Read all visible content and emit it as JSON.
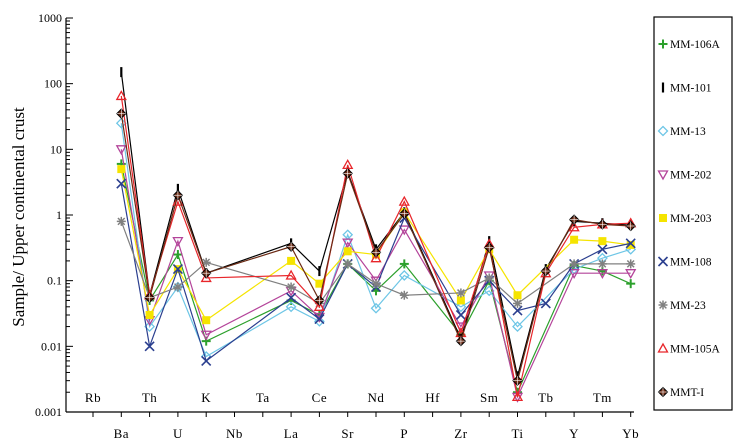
{
  "chart_data": {
    "type": "line",
    "title": "",
    "xlabel": "",
    "ylabel": "Sample/ Upper continental crust",
    "yscale": "log",
    "ylim": [
      0.001,
      1000
    ],
    "ytick_labels": [
      "0.001",
      "0.01",
      "0.1",
      "1",
      "10",
      "100",
      "1000"
    ],
    "ytick_values": [
      0.001,
      0.01,
      0.1,
      1,
      10,
      100,
      1000
    ],
    "categories": [
      "Rb",
      "Ba",
      "Th",
      "U",
      "K",
      "Nb",
      "Ta",
      "La",
      "Ce",
      "Sr",
      "Nd",
      "P",
      "Hf",
      "Zr",
      "Sm",
      "Ti",
      "Tb",
      "Y",
      "Tm",
      "Yb"
    ],
    "category_labels": [
      "Rb",
      "Ba",
      "Th",
      "U",
      "K",
      "Nb",
      "Ta",
      "La",
      "Ce",
      "Sr",
      "Nd",
      "P",
      "Hf",
      "Zr",
      "Sm",
      "Ti",
      "Tb",
      "Y",
      "Tm",
      "Yb"
    ],
    "category_rows": [
      "upper",
      "lower",
      "upper",
      "lower",
      "upper",
      "lower",
      "upper",
      "lower",
      "upper",
      "lower",
      "upper",
      "lower",
      "upper",
      "lower",
      "upper",
      "lower",
      "upper",
      "lower",
      "upper",
      "lower"
    ],
    "legend_position": "right",
    "series": [
      {
        "name": "MM-106A",
        "color": "#2ca02c",
        "marker": "plus",
        "x": [
          "Ba",
          "Th",
          "U",
          "K",
          "La",
          "Ce",
          "Sr",
          "Nd",
          "P",
          "Zr",
          "Sm",
          "Ti",
          "Y",
          "Tm",
          "Yb"
        ],
        "values": [
          6,
          0.05,
          0.25,
          0.012,
          0.05,
          0.03,
          0.18,
          0.07,
          0.18,
          0.015,
          0.1,
          0.002,
          0.17,
          0.14,
          0.09
        ]
      },
      {
        "name": "MM-101",
        "color": "#000000",
        "marker": "bar",
        "x": [
          "Ba",
          "Th",
          "U",
          "K",
          "La",
          "Ce",
          "Sr",
          "Nd",
          "P",
          "Zr",
          "Sm",
          "Ti",
          "Tb",
          "Y",
          "Tm",
          "Yb"
        ],
        "values": [
          150,
          0.06,
          2.5,
          0.13,
          0.37,
          0.14,
          4.5,
          0.3,
          1.1,
          0.013,
          0.4,
          0.0035,
          0.15,
          0.8,
          0.75,
          0.7
        ]
      },
      {
        "name": "MM-13",
        "color": "#6ec6e6",
        "marker": "diamond",
        "x": [
          "Ba",
          "Th",
          "U",
          "K",
          "La",
          "Ce",
          "Sr",
          "Nd",
          "P",
          "Zr",
          "Sm",
          "Ti",
          "Y",
          "Tm",
          "Yb"
        ],
        "values": [
          25,
          0.02,
          0.08,
          0.007,
          0.04,
          0.024,
          0.5,
          0.038,
          0.12,
          0.04,
          0.07,
          0.02,
          0.15,
          0.22,
          0.3
        ]
      },
      {
        "name": "MM-202",
        "color": "#b4449a",
        "marker": "triangle-down",
        "x": [
          "Ba",
          "Th",
          "U",
          "K",
          "La",
          "Ce",
          "Sr",
          "Nd",
          "P",
          "Zr",
          "Sm",
          "Ti",
          "Y",
          "Tm",
          "Yb"
        ],
        "values": [
          10,
          0.025,
          0.4,
          0.015,
          0.07,
          0.028,
          0.38,
          0.1,
          0.6,
          0.02,
          0.12,
          0.0017,
          0.13,
          0.13,
          0.13
        ]
      },
      {
        "name": "MM-203",
        "color": "#f5e400",
        "marker": "square",
        "x": [
          "Ba",
          "Th",
          "U",
          "K",
          "La",
          "Ce",
          "Sr",
          "Nd",
          "P",
          "Zr",
          "Sm",
          "Ti",
          "Y",
          "Tm",
          "Yb"
        ],
        "values": [
          5,
          0.03,
          0.15,
          0.025,
          0.2,
          0.09,
          0.28,
          0.25,
          1.1,
          0.05,
          0.3,
          0.06,
          0.42,
          0.4,
          0.35
        ]
      },
      {
        "name": "MM-108",
        "color": "#2b3f8f",
        "marker": "x",
        "x": [
          "Ba",
          "Th",
          "U",
          "K",
          "La",
          "Ce",
          "Sr",
          "Nd",
          "P",
          "Zr",
          "Sm",
          "Ti",
          "Tb",
          "Y",
          "Tm",
          "Yb"
        ],
        "values": [
          3,
          0.01,
          0.15,
          0.006,
          0.055,
          0.026,
          0.18,
          0.08,
          0.9,
          0.03,
          0.1,
          0.035,
          0.045,
          0.18,
          0.3,
          0.37
        ]
      },
      {
        "name": "MM-23",
        "color": "#808080",
        "marker": "asterisk",
        "x": [
          "Ba",
          "Th",
          "U",
          "K",
          "La",
          "Ce",
          "Sr",
          "Nd",
          "P",
          "Zr",
          "Sm",
          "Ti",
          "Y",
          "Tm",
          "Yb"
        ],
        "values": [
          0.8,
          0.055,
          0.08,
          0.19,
          0.08,
          0.045,
          0.18,
          0.09,
          0.06,
          0.065,
          0.11,
          0.045,
          0.18,
          0.18,
          0.18
        ]
      },
      {
        "name": "MM-105A",
        "color": "#e8262b",
        "marker": "triangle-up",
        "x": [
          "Ba",
          "Th",
          "U",
          "K",
          "La",
          "Ce",
          "Sr",
          "Nd",
          "P",
          "Zr",
          "Sm",
          "Ti",
          "Tb",
          "Y",
          "Tm",
          "Yb"
        ],
        "values": [
          65,
          0.06,
          1.6,
          0.11,
          0.12,
          0.04,
          5.8,
          0.22,
          1.6,
          0.016,
          0.36,
          0.0017,
          0.13,
          0.65,
          0.72,
          0.75
        ]
      },
      {
        "name": "MMT-I",
        "color": "#6b2a14",
        "marker": "diamond-filled",
        "x": [
          "Ba",
          "Th",
          "U",
          "K",
          "La",
          "Ce",
          "Sr",
          "Nd",
          "P",
          "Zr",
          "Sm",
          "Ti",
          "Tb",
          "Y",
          "Tm",
          "Yb"
        ],
        "values": [
          35,
          0.055,
          2.0,
          0.13,
          0.33,
          0.05,
          4.3,
          0.27,
          1.05,
          0.012,
          0.32,
          0.003,
          0.14,
          0.85,
          0.72,
          0.68
        ]
      }
    ]
  }
}
